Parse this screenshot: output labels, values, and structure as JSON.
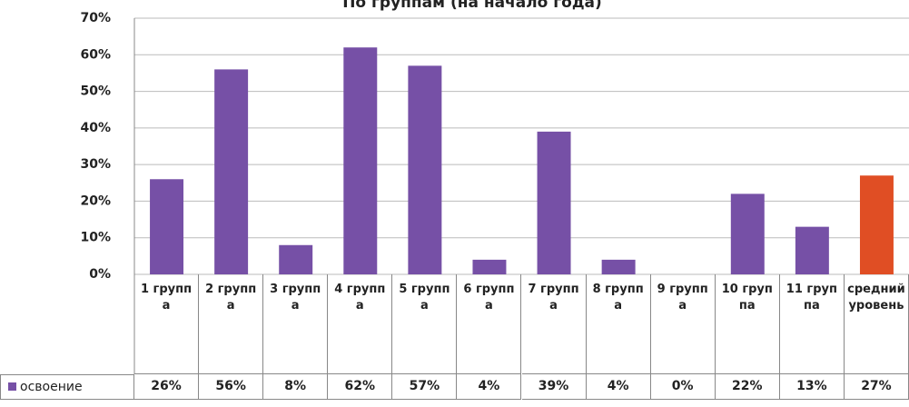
{
  "chart_data": {
    "type": "bar",
    "title": "По группам (на начало года)",
    "categories": [
      "1 группа",
      "2 группа",
      "3 группа",
      "4 группа",
      "5 группа",
      "6 группа",
      "7 группа",
      "8 группа",
      "9 группа",
      "10 группа",
      "11 группа",
      "средний уровень"
    ],
    "series": [
      {
        "name": "освоение",
        "color": "#7650a6",
        "colors": [
          "#7650a6",
          "#7650a6",
          "#7650a6",
          "#7650a6",
          "#7650a6",
          "#7650a6",
          "#7650a6",
          "#7650a6",
          "#7650a6",
          "#7650a6",
          "#7650a6",
          "#e04e24"
        ],
        "values": [
          26,
          56,
          8,
          62,
          57,
          4,
          39,
          4,
          0,
          22,
          13,
          27
        ],
        "value_labels": [
          "26%",
          "56%",
          "8%",
          "62%",
          "57%",
          "4%",
          "39%",
          "4%",
          "0%",
          "22%",
          "13%",
          "27%"
        ]
      }
    ],
    "ylim": [
      0,
      70
    ],
    "yticks": [
      {
        "value": 0,
        "label": "0%"
      },
      {
        "value": 10,
        "label": "10%"
      },
      {
        "value": 20,
        "label": "20%"
      },
      {
        "value": 30,
        "label": "30%"
      },
      {
        "value": 40,
        "label": "40%"
      },
      {
        "value": 50,
        "label": "50%"
      },
      {
        "value": 60,
        "label": "60%"
      },
      {
        "value": 70,
        "label": "70%"
      }
    ],
    "grid": true
  }
}
